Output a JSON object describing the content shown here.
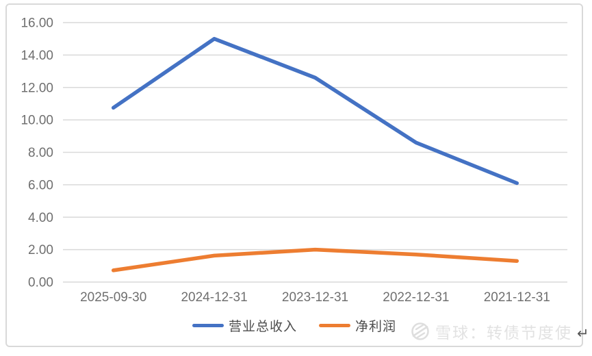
{
  "chart_data": {
    "type": "line",
    "categories": [
      "2025-09-30",
      "2024-12-31",
      "2023-12-31",
      "2022-12-31",
      "2021-12-31"
    ],
    "series": [
      {
        "name": "营业总收入",
        "color": "#4472C4",
        "values": [
          10.75,
          15.0,
          12.6,
          8.6,
          6.1
        ]
      },
      {
        "name": "净利润",
        "color": "#ED7D31",
        "values": [
          0.72,
          1.63,
          2.0,
          1.7,
          1.3
        ]
      }
    ],
    "title": "",
    "xlabel": "",
    "ylabel": "",
    "ylim": [
      0,
      16
    ],
    "ytick_step": 2,
    "ytick_labels": [
      "0.00",
      "2.00",
      "4.00",
      "6.00",
      "8.00",
      "10.00",
      "12.00",
      "14.00",
      "16.00"
    ],
    "grid": true,
    "legend_position": "bottom"
  },
  "colors": {
    "grid": "#d9d9d9",
    "border": "#d9d9d9",
    "axis_text": "#6f6f6f",
    "legend_text": "#4d4d4d",
    "watermark": "#e2e2e2",
    "series_blue": "#4472C4",
    "series_orange": "#ED7D31"
  },
  "watermark": {
    "source": "雪球",
    "text": "雪球：转债节度使",
    "logo": "xueqiu-snowball-icon"
  },
  "page": {
    "return_mark": "↵"
  }
}
